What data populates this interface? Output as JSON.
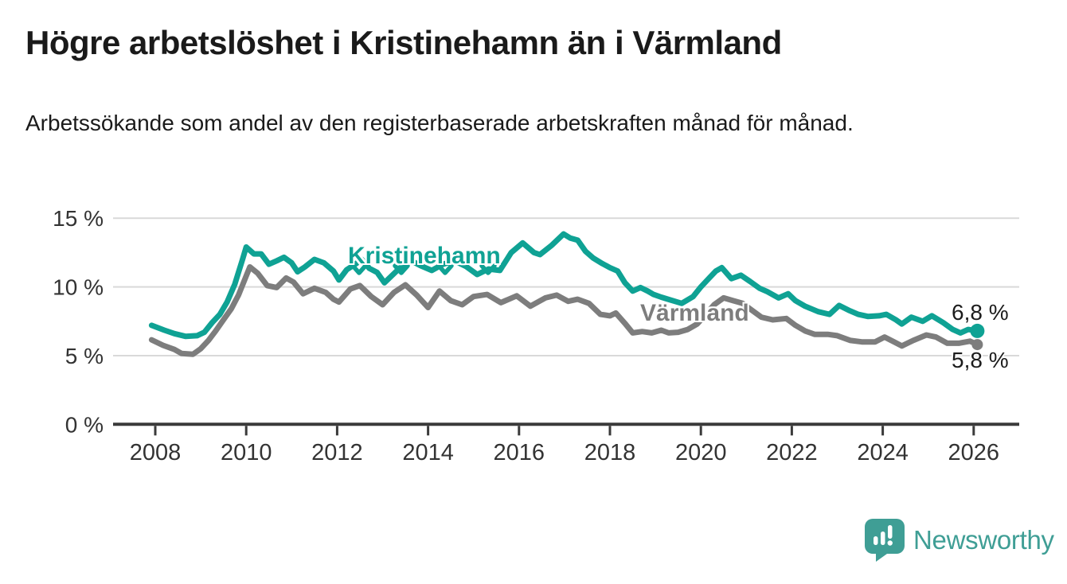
{
  "header": {
    "title": "Högre arbetslöshet i Kristinehamn än i Värmland",
    "subtitle": "Arbetssökande som andel av den registerbaserade arbetskraften månad för månad."
  },
  "logo": {
    "text": "Newsworthy",
    "color": "#3f9e95",
    "icon": "speech-bubble-bar-chart-icon"
  },
  "chart_data": {
    "type": "line",
    "xlabel": "",
    "ylabel": "",
    "xlim": [
      2007.9,
      2027
    ],
    "ylim": [
      0,
      15
    ],
    "grid": true,
    "grid_color": "#d9d9d9",
    "axis_color": "#3a3a3a",
    "tick_label_color": "#333333",
    "x_ticks": [
      {
        "value": 2008,
        "label": "2008"
      },
      {
        "value": 2010,
        "label": "2010"
      },
      {
        "value": 2012,
        "label": "2012"
      },
      {
        "value": 2014,
        "label": "2014"
      },
      {
        "value": 2016,
        "label": "2016"
      },
      {
        "value": 2018,
        "label": "2018"
      },
      {
        "value": 2020,
        "label": "2020"
      },
      {
        "value": 2022,
        "label": "2022"
      },
      {
        "value": 2024,
        "label": "2024"
      },
      {
        "value": 2026,
        "label": "2026"
      }
    ],
    "y_ticks": [
      {
        "value": 0,
        "label": "0 %"
      },
      {
        "value": 5,
        "label": "5 %"
      },
      {
        "value": 10,
        "label": "10 %"
      },
      {
        "value": 15,
        "label": "15 %"
      }
    ],
    "series": [
      {
        "id": "kristinehamn",
        "label": "Kristinehamn",
        "color": "#0fa294",
        "end_label": "6,8 %",
        "end_value": 6.8,
        "end_dot_radius": 9,
        "points": [
          [
            2007.92,
            7.2
          ],
          [
            2008.2,
            6.85
          ],
          [
            2008.42,
            6.6
          ],
          [
            2008.67,
            6.4
          ],
          [
            2008.92,
            6.45
          ],
          [
            2009.08,
            6.7
          ],
          [
            2009.25,
            7.4
          ],
          [
            2009.42,
            8.0
          ],
          [
            2009.58,
            8.9
          ],
          [
            2009.75,
            10.2
          ],
          [
            2009.92,
            12.0
          ],
          [
            2010.0,
            12.9
          ],
          [
            2010.17,
            12.4
          ],
          [
            2010.33,
            12.4
          ],
          [
            2010.5,
            11.65
          ],
          [
            2010.67,
            11.9
          ],
          [
            2010.83,
            12.15
          ],
          [
            2011.0,
            11.75
          ],
          [
            2011.13,
            11.1
          ],
          [
            2011.29,
            11.45
          ],
          [
            2011.5,
            12.0
          ],
          [
            2011.71,
            11.75
          ],
          [
            2011.92,
            11.15
          ],
          [
            2012.04,
            10.5
          ],
          [
            2012.21,
            11.25
          ],
          [
            2012.42,
            11.7
          ],
          [
            2012.54,
            12.0
          ],
          [
            2012.71,
            11.35
          ],
          [
            2012.88,
            11.05
          ],
          [
            2013.04,
            10.3
          ],
          [
            2013.29,
            11.1
          ],
          [
            2013.58,
            12.0
          ],
          [
            2013.83,
            11.55
          ],
          [
            2014.08,
            11.2
          ],
          [
            2014.33,
            11.65
          ],
          [
            2014.58,
            11.9
          ],
          [
            2014.83,
            11.5
          ],
          [
            2015.08,
            10.9
          ],
          [
            2015.33,
            11.3
          ],
          [
            2015.58,
            11.2
          ],
          [
            2015.83,
            12.5
          ],
          [
            2016.08,
            13.2
          ],
          [
            2016.33,
            12.5
          ],
          [
            2016.46,
            12.35
          ],
          [
            2016.71,
            13.0
          ],
          [
            2016.98,
            13.85
          ],
          [
            2017.13,
            13.55
          ],
          [
            2017.29,
            13.4
          ],
          [
            2017.46,
            12.6
          ],
          [
            2017.63,
            12.1
          ],
          [
            2017.83,
            11.7
          ],
          [
            2018.0,
            11.4
          ],
          [
            2018.17,
            11.15
          ],
          [
            2018.33,
            10.3
          ],
          [
            2018.5,
            9.7
          ],
          [
            2018.67,
            9.95
          ],
          [
            2018.83,
            9.7
          ],
          [
            2018.96,
            9.45
          ],
          [
            2019.13,
            9.25
          ],
          [
            2019.33,
            9.05
          ],
          [
            2019.58,
            8.8
          ],
          [
            2019.83,
            9.3
          ],
          [
            2020.0,
            10.0
          ],
          [
            2020.17,
            10.6
          ],
          [
            2020.33,
            11.15
          ],
          [
            2020.46,
            11.4
          ],
          [
            2020.67,
            10.6
          ],
          [
            2020.88,
            10.85
          ],
          [
            2021.08,
            10.4
          ],
          [
            2021.29,
            9.9
          ],
          [
            2021.46,
            9.65
          ],
          [
            2021.71,
            9.2
          ],
          [
            2021.92,
            9.5
          ],
          [
            2022.08,
            9.0
          ],
          [
            2022.29,
            8.6
          ],
          [
            2022.58,
            8.2
          ],
          [
            2022.83,
            8.0
          ],
          [
            2023.04,
            8.65
          ],
          [
            2023.25,
            8.3
          ],
          [
            2023.46,
            8.0
          ],
          [
            2023.67,
            7.85
          ],
          [
            2023.92,
            7.9
          ],
          [
            2024.08,
            8.0
          ],
          [
            2024.29,
            7.6
          ],
          [
            2024.42,
            7.3
          ],
          [
            2024.63,
            7.8
          ],
          [
            2024.88,
            7.5
          ],
          [
            2025.08,
            7.9
          ],
          [
            2025.33,
            7.4
          ],
          [
            2025.54,
            6.9
          ],
          [
            2025.71,
            6.65
          ],
          [
            2025.88,
            6.9
          ],
          [
            2026.08,
            6.8
          ]
        ]
      },
      {
        "id": "varmland",
        "label": "Värmland",
        "color": "#7d7d7d",
        "end_label": "5,8 %",
        "end_value": 5.8,
        "end_dot_radius": 7,
        "points": [
          [
            2007.92,
            6.15
          ],
          [
            2008.17,
            5.75
          ],
          [
            2008.42,
            5.45
          ],
          [
            2008.58,
            5.15
          ],
          [
            2008.83,
            5.1
          ],
          [
            2009.0,
            5.5
          ],
          [
            2009.17,
            6.1
          ],
          [
            2009.33,
            6.8
          ],
          [
            2009.5,
            7.6
          ],
          [
            2009.67,
            8.4
          ],
          [
            2009.83,
            9.4
          ],
          [
            2010.0,
            10.8
          ],
          [
            2010.08,
            11.45
          ],
          [
            2010.25,
            11.0
          ],
          [
            2010.46,
            10.1
          ],
          [
            2010.67,
            9.95
          ],
          [
            2010.88,
            10.65
          ],
          [
            2011.04,
            10.35
          ],
          [
            2011.25,
            9.5
          ],
          [
            2011.5,
            9.9
          ],
          [
            2011.75,
            9.6
          ],
          [
            2011.92,
            9.1
          ],
          [
            2012.04,
            8.9
          ],
          [
            2012.29,
            9.85
          ],
          [
            2012.5,
            10.1
          ],
          [
            2012.75,
            9.3
          ],
          [
            2013.0,
            8.7
          ],
          [
            2013.25,
            9.6
          ],
          [
            2013.5,
            10.15
          ],
          [
            2013.75,
            9.4
          ],
          [
            2014.0,
            8.5
          ],
          [
            2014.25,
            9.7
          ],
          [
            2014.5,
            9.0
          ],
          [
            2014.75,
            8.7
          ],
          [
            2015.0,
            9.3
          ],
          [
            2015.3,
            9.45
          ],
          [
            2015.6,
            8.85
          ],
          [
            2015.95,
            9.35
          ],
          [
            2016.25,
            8.6
          ],
          [
            2016.58,
            9.2
          ],
          [
            2016.83,
            9.4
          ],
          [
            2017.08,
            8.95
          ],
          [
            2017.29,
            9.1
          ],
          [
            2017.54,
            8.8
          ],
          [
            2017.79,
            8.0
          ],
          [
            2018.0,
            7.9
          ],
          [
            2018.13,
            8.1
          ],
          [
            2018.33,
            7.35
          ],
          [
            2018.5,
            6.65
          ],
          [
            2018.71,
            6.75
          ],
          [
            2018.92,
            6.65
          ],
          [
            2019.13,
            6.85
          ],
          [
            2019.29,
            6.65
          ],
          [
            2019.5,
            6.7
          ],
          [
            2019.71,
            6.9
          ],
          [
            2019.92,
            7.3
          ],
          [
            2020.08,
            7.9
          ],
          [
            2020.29,
            8.7
          ],
          [
            2020.5,
            9.2
          ],
          [
            2020.71,
            9.0
          ],
          [
            2020.92,
            8.8
          ],
          [
            2021.08,
            8.4
          ],
          [
            2021.33,
            7.8
          ],
          [
            2021.58,
            7.6
          ],
          [
            2021.88,
            7.7
          ],
          [
            2022.08,
            7.2
          ],
          [
            2022.29,
            6.8
          ],
          [
            2022.5,
            6.55
          ],
          [
            2022.79,
            6.55
          ],
          [
            2023.0,
            6.45
          ],
          [
            2023.29,
            6.1
          ],
          [
            2023.54,
            6.0
          ],
          [
            2023.83,
            6.0
          ],
          [
            2024.04,
            6.35
          ],
          [
            2024.25,
            6.0
          ],
          [
            2024.42,
            5.7
          ],
          [
            2024.67,
            6.1
          ],
          [
            2024.96,
            6.5
          ],
          [
            2025.17,
            6.35
          ],
          [
            2025.42,
            5.9
          ],
          [
            2025.67,
            5.9
          ],
          [
            2025.92,
            6.05
          ],
          [
            2026.08,
            5.8
          ]
        ]
      }
    ]
  }
}
